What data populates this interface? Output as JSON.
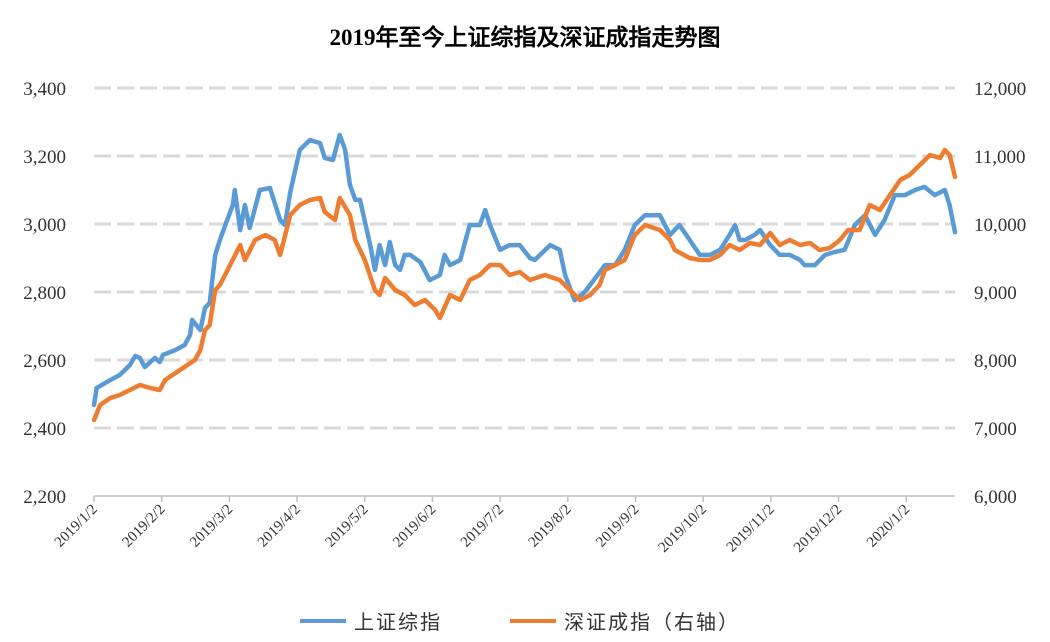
{
  "chart_data": {
    "type": "line",
    "title": "2019年至今上证综指及深证成指走势图",
    "xlabel": "",
    "ylabel": "",
    "x_unit": "months since 2019/1/2",
    "xlim": [
      0,
      12.72
    ],
    "x_ticks": [
      0,
      1,
      2,
      3,
      4,
      5,
      6,
      7,
      8,
      9,
      10,
      11,
      12
    ],
    "x_tick_labels": [
      "2019/1/2",
      "2019/2/2",
      "2019/3/2",
      "2019/4/2",
      "2019/5/2",
      "2019/6/2",
      "2019/7/2",
      "2019/8/2",
      "2019/9/2",
      "2019/10/2",
      "2019/11/2",
      "2019/12/2",
      "2020/1/2"
    ],
    "ylim_left": [
      2200,
      3400
    ],
    "y_ticks_left": [
      "2,200",
      "2,400",
      "2,600",
      "2,800",
      "3,000",
      "3,200",
      "3,400"
    ],
    "ylim_right": [
      6000,
      12000
    ],
    "y_ticks_right": [
      "6,000",
      "7,000",
      "8,000",
      "9,000",
      "10,000",
      "11,000",
      "12,000"
    ],
    "grid": true,
    "legend_position": "bottom",
    "series": [
      {
        "name": "上证综指",
        "axis": "left",
        "color": "#5b9bd5",
        "points": [
          [
            0,
            2468
          ],
          [
            0.04,
            2518
          ],
          [
            0.24,
            2541
          ],
          [
            0.38,
            2556
          ],
          [
            0.53,
            2585
          ],
          [
            0.61,
            2612
          ],
          [
            0.68,
            2606
          ],
          [
            0.75,
            2579
          ],
          [
            0.9,
            2606
          ],
          [
            0.97,
            2594
          ],
          [
            1.02,
            2615
          ],
          [
            1.2,
            2629
          ],
          [
            1.34,
            2644
          ],
          [
            1.42,
            2674
          ],
          [
            1.45,
            2718
          ],
          [
            1.57,
            2688
          ],
          [
            1.64,
            2753
          ],
          [
            1.71,
            2768
          ],
          [
            1.79,
            2909
          ],
          [
            1.86,
            2953
          ],
          [
            1.94,
            2997
          ],
          [
            2.05,
            3056
          ],
          [
            2.08,
            3100
          ],
          [
            2.16,
            2982
          ],
          [
            2.23,
            3056
          ],
          [
            2.3,
            2988
          ],
          [
            2.45,
            3100
          ],
          [
            2.6,
            3106
          ],
          [
            2.75,
            3012
          ],
          [
            2.82,
            2997
          ],
          [
            2.9,
            3094
          ],
          [
            3.04,
            3218
          ],
          [
            3.19,
            3247
          ],
          [
            3.34,
            3238
          ],
          [
            3.41,
            3194
          ],
          [
            3.53,
            3188
          ],
          [
            3.63,
            3262
          ],
          [
            3.71,
            3218
          ],
          [
            3.78,
            3115
          ],
          [
            3.86,
            3071
          ],
          [
            3.93,
            3071
          ],
          [
            4.08,
            2938
          ],
          [
            4.15,
            2865
          ],
          [
            4.22,
            2938
          ],
          [
            4.3,
            2879
          ],
          [
            4.37,
            2947
          ],
          [
            4.45,
            2879
          ],
          [
            4.52,
            2865
          ],
          [
            4.59,
            2909
          ],
          [
            4.67,
            2909
          ],
          [
            4.82,
            2888
          ],
          [
            4.96,
            2835
          ],
          [
            5.11,
            2850
          ],
          [
            5.18,
            2909
          ],
          [
            5.26,
            2879
          ],
          [
            5.41,
            2894
          ],
          [
            5.55,
            2997
          ],
          [
            5.7,
            2997
          ],
          [
            5.78,
            3041
          ],
          [
            5.85,
            2997
          ],
          [
            6.0,
            2924
          ],
          [
            6.14,
            2938
          ],
          [
            6.29,
            2938
          ],
          [
            6.44,
            2900
          ],
          [
            6.51,
            2894
          ],
          [
            6.74,
            2938
          ],
          [
            6.88,
            2924
          ],
          [
            6.96,
            2850
          ],
          [
            7.1,
            2776
          ],
          [
            7.25,
            2800
          ],
          [
            7.33,
            2821
          ],
          [
            7.55,
            2879
          ],
          [
            7.7,
            2879
          ],
          [
            7.84,
            2924
          ],
          [
            7.99,
            2997
          ],
          [
            8.14,
            3026
          ],
          [
            8.36,
            3026
          ],
          [
            8.51,
            2968
          ],
          [
            8.65,
            2997
          ],
          [
            8.8,
            2953
          ],
          [
            8.95,
            2909
          ],
          [
            9.1,
            2909
          ],
          [
            9.25,
            2924
          ],
          [
            9.39,
            2968
          ],
          [
            9.47,
            2997
          ],
          [
            9.54,
            2953
          ],
          [
            9.62,
            2953
          ],
          [
            9.76,
            2968
          ],
          [
            9.84,
            2982
          ],
          [
            9.99,
            2938
          ],
          [
            10.13,
            2909
          ],
          [
            10.28,
            2909
          ],
          [
            10.43,
            2894
          ],
          [
            10.5,
            2879
          ],
          [
            10.65,
            2879
          ],
          [
            10.8,
            2909
          ],
          [
            10.95,
            2918
          ],
          [
            11.09,
            2924
          ],
          [
            11.24,
            2997
          ],
          [
            11.39,
            3026
          ],
          [
            11.54,
            2968
          ],
          [
            11.68,
            3012
          ],
          [
            11.83,
            3085
          ],
          [
            11.98,
            3085
          ],
          [
            12.13,
            3100
          ],
          [
            12.27,
            3109
          ],
          [
            12.42,
            3085
          ],
          [
            12.57,
            3100
          ],
          [
            12.64,
            3056
          ],
          [
            12.72,
            2976
          ]
        ]
      },
      {
        "name": "深证成指（右轴）",
        "axis": "right",
        "color": "#ed7d31",
        "points": [
          [
            0,
            7118
          ],
          [
            0.09,
            7338
          ],
          [
            0.24,
            7441
          ],
          [
            0.38,
            7485
          ],
          [
            0.53,
            7559
          ],
          [
            0.68,
            7632
          ],
          [
            0.83,
            7588
          ],
          [
            0.97,
            7559
          ],
          [
            1.05,
            7706
          ],
          [
            1.27,
            7853
          ],
          [
            1.49,
            8000
          ],
          [
            1.57,
            8147
          ],
          [
            1.64,
            8441
          ],
          [
            1.71,
            8515
          ],
          [
            1.79,
            9029
          ],
          [
            1.86,
            9103
          ],
          [
            2.01,
            9397
          ],
          [
            2.16,
            9691
          ],
          [
            2.23,
            9471
          ],
          [
            2.38,
            9765
          ],
          [
            2.53,
            9838
          ],
          [
            2.67,
            9765
          ],
          [
            2.75,
            9544
          ],
          [
            2.9,
            10132
          ],
          [
            3.04,
            10279
          ],
          [
            3.19,
            10353
          ],
          [
            3.34,
            10382
          ],
          [
            3.41,
            10176
          ],
          [
            3.56,
            10059
          ],
          [
            3.63,
            10382
          ],
          [
            3.78,
            10132
          ],
          [
            3.86,
            9765
          ],
          [
            4.0,
            9471
          ],
          [
            4.15,
            9029
          ],
          [
            4.22,
            8956
          ],
          [
            4.3,
            9206
          ],
          [
            4.45,
            9029
          ],
          [
            4.59,
            8956
          ],
          [
            4.74,
            8809
          ],
          [
            4.89,
            8882
          ],
          [
            5.04,
            8735
          ],
          [
            5.11,
            8618
          ],
          [
            5.26,
            8956
          ],
          [
            5.41,
            8882
          ],
          [
            5.55,
            9176
          ],
          [
            5.7,
            9250
          ],
          [
            5.85,
            9397
          ],
          [
            6.0,
            9397
          ],
          [
            6.14,
            9250
          ],
          [
            6.29,
            9294
          ],
          [
            6.44,
            9176
          ],
          [
            6.66,
            9250
          ],
          [
            6.88,
            9176
          ],
          [
            7.03,
            9029
          ],
          [
            7.18,
            8882
          ],
          [
            7.33,
            8956
          ],
          [
            7.47,
            9103
          ],
          [
            7.55,
            9324
          ],
          [
            7.7,
            9397
          ],
          [
            7.84,
            9471
          ],
          [
            7.99,
            9838
          ],
          [
            8.14,
            9985
          ],
          [
            8.36,
            9912
          ],
          [
            8.51,
            9765
          ],
          [
            8.58,
            9618
          ],
          [
            8.8,
            9500
          ],
          [
            8.95,
            9471
          ],
          [
            9.1,
            9471
          ],
          [
            9.25,
            9544
          ],
          [
            9.39,
            9691
          ],
          [
            9.54,
            9618
          ],
          [
            9.69,
            9721
          ],
          [
            9.84,
            9691
          ],
          [
            9.99,
            9868
          ],
          [
            10.13,
            9691
          ],
          [
            10.28,
            9765
          ],
          [
            10.43,
            9691
          ],
          [
            10.58,
            9721
          ],
          [
            10.72,
            9618
          ],
          [
            10.87,
            9647
          ],
          [
            11.02,
            9765
          ],
          [
            11.14,
            9912
          ],
          [
            11.31,
            9912
          ],
          [
            11.46,
            10279
          ],
          [
            11.61,
            10206
          ],
          [
            11.76,
            10426
          ],
          [
            11.91,
            10647
          ],
          [
            12.05,
            10721
          ],
          [
            12.2,
            10868
          ],
          [
            12.35,
            11015
          ],
          [
            12.5,
            10971
          ],
          [
            12.57,
            11088
          ],
          [
            12.64,
            11015
          ],
          [
            12.72,
            10691
          ]
        ]
      }
    ]
  }
}
